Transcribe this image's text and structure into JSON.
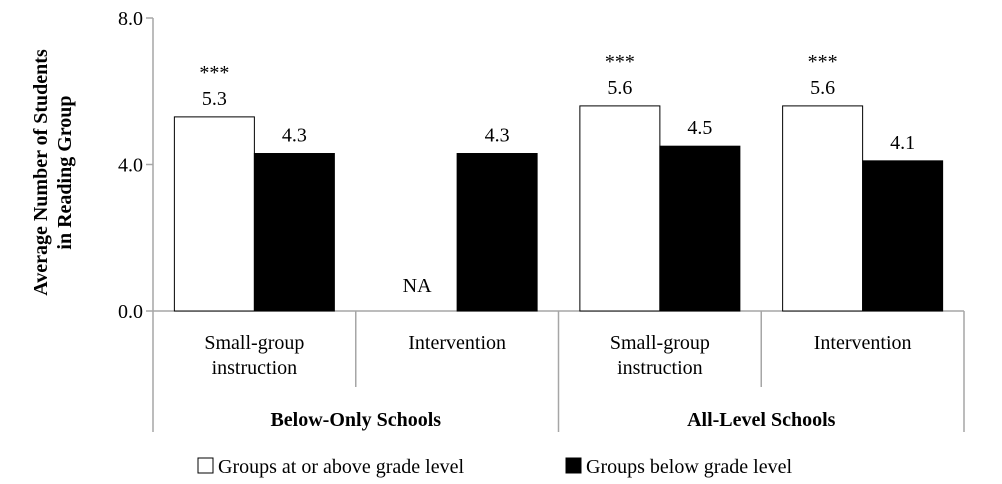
{
  "chart_data": {
    "type": "bar",
    "ylabel": [
      "Average Number of Students",
      "in Reading Group"
    ],
    "ylim": [
      0,
      8
    ],
    "yticks": [
      "0.0",
      "4.0",
      "8.0"
    ],
    "ytick_values": [
      0,
      4,
      8
    ],
    "grid": false,
    "legend_position": "bottom",
    "groups": [
      {
        "label": "Below-Only Schools",
        "categories": [
          {
            "label": [
              "Small-group",
              "instruction"
            ],
            "values": [
              5.3,
              4.3
            ],
            "value_labels": [
              "5.3",
              "4.3"
            ],
            "significance": "***"
          },
          {
            "label": [
              "Intervention"
            ],
            "values": [
              null,
              4.3
            ],
            "value_labels": [
              "NA",
              "4.3"
            ],
            "significance": ""
          }
        ]
      },
      {
        "label": "All-Level Schools",
        "categories": [
          {
            "label": [
              "Small-group",
              "instruction"
            ],
            "values": [
              5.6,
              4.5
            ],
            "value_labels": [
              "5.6",
              "4.5"
            ],
            "significance": "***"
          },
          {
            "label": [
              "Intervention"
            ],
            "values": [
              5.6,
              4.1
            ],
            "value_labels": [
              "5.6",
              "4.1"
            ],
            "significance": "***"
          }
        ]
      }
    ],
    "series": [
      {
        "name": "Groups at or above grade level",
        "color": "#ffffff",
        "stroke": "#000000"
      },
      {
        "name": "Groups below grade level",
        "color": "#000000",
        "stroke": "#000000"
      }
    ]
  }
}
